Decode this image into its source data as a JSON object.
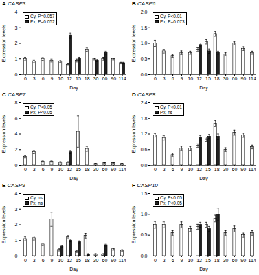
{
  "chart_data": [
    {
      "type": "bar",
      "title": "CASP3",
      "annotations": [
        "A"
      ],
      "xlabel": "Day",
      "ylabel": "Expression levels",
      "categories": [
        "0",
        "3",
        "6",
        "9",
        "10",
        "12",
        "15",
        "18",
        "30",
        "60",
        "90",
        "114"
      ],
      "series": [
        {
          "name": "Cy, P=0.057",
          "color": "white",
          "values": [
            1.0,
            0.85,
            1.0,
            0.9,
            0.85,
            0.65,
            0.9,
            1.6,
            1.0,
            1.0,
            1.0,
            0.75
          ],
          "errors": [
            0.1,
            0.08,
            0.08,
            0.08,
            0.05,
            0.05,
            0.08,
            0.1,
            0.05,
            0.1,
            0.05,
            0.05
          ]
        },
        {
          "name": "Px, P=0.052",
          "color": "#222222",
          "values": [
            null,
            null,
            null,
            null,
            null,
            2.5,
            1.0,
            null,
            0.9,
            1.4,
            null,
            0.75
          ],
          "errors": [
            null,
            null,
            null,
            null,
            null,
            0.15,
            0.1,
            null,
            0.05,
            0.1,
            null,
            0.05
          ]
        }
      ],
      "ylim": [
        0,
        4
      ],
      "yticks": [
        0,
        1,
        2,
        3,
        4
      ],
      "legend": "upper left",
      "grid": false
    },
    {
      "type": "bar",
      "title": "CASP6",
      "annotations": [
        "B"
      ],
      "xlabel": "Day",
      "ylabel": "Expression levels",
      "categories": [
        "0",
        "3",
        "6",
        "9",
        "10",
        "12",
        "15",
        "18",
        "30",
        "60",
        "90",
        "114"
      ],
      "series": [
        {
          "name": "Cy, P<0.01",
          "color": "white",
          "values": [
            1.0,
            0.75,
            0.6,
            0.7,
            0.7,
            0.8,
            1.05,
            1.3,
            0.65,
            1.0,
            0.83,
            0.7
          ],
          "errors": [
            0.1,
            0.06,
            0.05,
            0.06,
            0.05,
            0.06,
            0.07,
            0.08,
            0.05,
            0.05,
            0.06,
            0.05
          ]
        },
        {
          "name": "Px, P=0.073",
          "color": "#222222",
          "values": [
            null,
            null,
            null,
            null,
            null,
            0.95,
            0.75,
            0.7,
            null,
            null,
            null,
            null
          ],
          "errors": [
            null,
            null,
            null,
            null,
            null,
            0.06,
            0.07,
            0.05,
            null,
            null,
            null,
            null
          ]
        }
      ],
      "ylim": [
        0,
        2
      ],
      "yticks": [
        {
          "value": 0,
          "label": "0.0"
        },
        0.5,
        {
          "value": 1.0,
          "label": "1.0"
        },
        1.5,
        {
          "value": 2.0,
          "label": "2.0"
        }
      ],
      "legend": "upper left",
      "grid": false
    },
    {
      "type": "bar",
      "title": "CASP7",
      "annotations": [
        "C"
      ],
      "xlabel": "Day",
      "ylabel": "Expression levels",
      "categories": [
        "0",
        "3",
        "6",
        "9",
        "10",
        "12",
        "15",
        "18",
        "30",
        "60",
        "90",
        "114"
      ],
      "series": [
        {
          "name": "Cy, P<0.05",
          "color": "white",
          "values": [
            1.1,
            1.7,
            0.5,
            0.5,
            0.4,
            0.4,
            4.3,
            2.1,
            0.2,
            0.3,
            0.3,
            0.2
          ],
          "errors": [
            0.15,
            0.2,
            0.08,
            0.08,
            0.07,
            0.07,
            2.0,
            0.3,
            0.05,
            0.05,
            0.05,
            0.05
          ]
        },
        {
          "name": "Px, P<0.05",
          "color": "#222222",
          "values": [
            null,
            null,
            null,
            null,
            null,
            1.7,
            null,
            null,
            null,
            null,
            null,
            null
          ],
          "errors": [
            null,
            null,
            null,
            null,
            null,
            0.2,
            null,
            null,
            null,
            null,
            null,
            null
          ]
        }
      ],
      "ylim": [
        0,
        8
      ],
      "yticks": [
        0,
        2,
        4,
        6,
        8
      ],
      "legend": "upper left",
      "grid": false
    },
    {
      "type": "bar",
      "title": "CASP8",
      "annotations": [
        "D"
      ],
      "xlabel": "Day",
      "ylabel": "Expression levels",
      "categories": [
        "0",
        "3",
        "6",
        "9",
        "10",
        "12",
        "15",
        "18",
        "30",
        "60",
        "90",
        "114"
      ],
      "series": [
        {
          "name": "Cy, P<0.01",
          "color": "white",
          "values": [
            1.15,
            1.05,
            0.4,
            0.65,
            0.65,
            0.75,
            1.0,
            1.6,
            0.6,
            1.25,
            1.15,
            0.7
          ],
          "errors": [
            0.07,
            0.08,
            0.07,
            0.08,
            0.07,
            0.07,
            0.08,
            0.12,
            0.07,
            0.1,
            0.08,
            0.07
          ]
        },
        {
          "name": "Px, ns",
          "color": "#222222",
          "values": [
            null,
            null,
            null,
            null,
            null,
            1.05,
            1.1,
            1.1,
            null,
            null,
            null,
            null
          ],
          "errors": [
            null,
            null,
            null,
            null,
            null,
            0.08,
            0.08,
            0.1,
            null,
            null,
            null,
            null
          ]
        }
      ],
      "ylim": [
        0,
        2.4
      ],
      "yticks": [
        {
          "value": 0,
          "label": "0.0"
        },
        0.6,
        1.2,
        1.8,
        2.4
      ],
      "legend": "upper left",
      "grid": false
    },
    {
      "type": "bar",
      "title": "CASP9",
      "annotations": [
        "E"
      ],
      "xlabel": "Day",
      "ylabel": "Expression levels",
      "categories": [
        "0",
        "3",
        "6",
        "9",
        "10",
        "12",
        "15",
        "18",
        "30",
        "60",
        "90",
        "114"
      ],
      "series": [
        {
          "name": "Cy, ns",
          "color": "white",
          "values": [
            1.1,
            1.15,
            0.75,
            2.35,
            0.4,
            1.2,
            0.3,
            1.3,
            0.1,
            0.1,
            0.45,
            0.35
          ],
          "errors": [
            0.12,
            0.12,
            0.08,
            0.45,
            0.07,
            0.1,
            0.07,
            0.15,
            0.05,
            0.05,
            0.07,
            0.06
          ]
        },
        {
          "name": "Px, ns",
          "color": "#222222",
          "values": [
            null,
            null,
            null,
            null,
            0.6,
            1.0,
            0.9,
            0.1,
            null,
            0.7,
            null,
            null
          ],
          "errors": [
            null,
            null,
            null,
            null,
            0.07,
            0.08,
            0.08,
            0.05,
            null,
            0.06,
            null,
            null
          ]
        }
      ],
      "ylim": [
        0,
        4
      ],
      "yticks": [
        0,
        1,
        2,
        3,
        4
      ],
      "legend": "upper left",
      "grid": false
    },
    {
      "type": "bar",
      "title": "CASP10",
      "annotations": [
        "F"
      ],
      "xlabel": "Day",
      "ylabel": "Expression levels",
      "categories": [
        "0",
        "3",
        "6",
        "9",
        "10",
        "12",
        "15",
        "18",
        "30",
        "60",
        "90",
        "114"
      ],
      "series": [
        {
          "name": "Cy, P<0.05",
          "color": "white",
          "values": [
            0.75,
            0.75,
            0.55,
            0.75,
            0.65,
            0.7,
            0.75,
            0.9,
            0.55,
            0.65,
            0.5,
            0.55
          ],
          "errors": [
            0.08,
            0.07,
            0.06,
            0.07,
            0.06,
            0.06,
            0.06,
            0.08,
            0.06,
            0.07,
            0.05,
            0.06
          ]
        },
        {
          "name": "Px, P<0.05",
          "color": "#222222",
          "values": [
            null,
            null,
            null,
            null,
            null,
            0.75,
            0.65,
            1.0,
            null,
            null,
            null,
            null
          ],
          "errors": [
            null,
            null,
            null,
            null,
            null,
            0.06,
            0.06,
            0.15,
            null,
            null,
            null,
            null
          ]
        }
      ],
      "ylim": [
        0,
        1.5
      ],
      "yticks": [
        {
          "value": 0,
          "label": "0.0"
        },
        0.5,
        {
          "value": 1.0,
          "label": "1.0"
        },
        1.5
      ],
      "legend": "upper left",
      "grid": false
    }
  ]
}
